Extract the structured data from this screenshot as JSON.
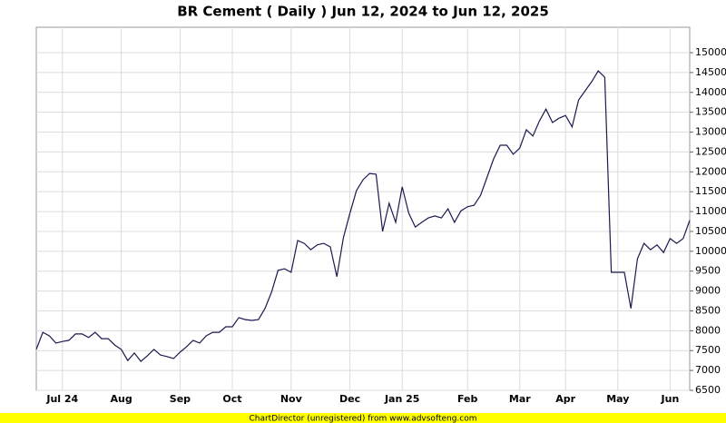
{
  "chart_data": {
    "type": "line",
    "title": "BR Cement ( Daily ) Jun 12, 2024 to Jun 12, 2025",
    "categories": [
      null,
      null,
      null,
      null,
      "Jul 24",
      null,
      null,
      null,
      null,
      null,
      null,
      null,
      null,
      "Aug",
      null,
      null,
      null,
      null,
      null,
      null,
      null,
      null,
      "Sep",
      null,
      null,
      null,
      null,
      null,
      null,
      null,
      "Oct",
      null,
      null,
      null,
      null,
      null,
      null,
      null,
      null,
      "Nov",
      null,
      null,
      null,
      null,
      null,
      null,
      null,
      null,
      "Dec",
      null,
      null,
      null,
      null,
      null,
      null,
      null,
      "Jan 25",
      null,
      null,
      null,
      null,
      null,
      null,
      null,
      null,
      null,
      "Feb",
      null,
      null,
      null,
      null,
      null,
      null,
      null,
      "Mar",
      null,
      null,
      null,
      null,
      null,
      null,
      "Apr",
      null,
      null,
      null,
      null,
      null,
      null,
      null,
      "May",
      null,
      null,
      null,
      null,
      null,
      null,
      null,
      "Jun",
      null,
      null,
      null
    ],
    "values": [
      7530,
      7960,
      7870,
      7690,
      7730,
      7760,
      7920,
      7920,
      7830,
      7960,
      7800,
      7800,
      7640,
      7530,
      7250,
      7440,
      7230,
      7370,
      7530,
      7390,
      7350,
      7300,
      7460,
      7600,
      7760,
      7690,
      7870,
      7960,
      7960,
      8100,
      8100,
      8330,
      8280,
      8260,
      8280,
      8560,
      8970,
      9520,
      9560,
      9470,
      10270,
      10200,
      10040,
      10160,
      10200,
      10110,
      9360,
      10340,
      10960,
      11530,
      11800,
      11960,
      11940,
      10500,
      11210,
      10730,
      11620,
      10960,
      10610,
      10730,
      10840,
      10890,
      10840,
      11070,
      10730,
      11020,
      11120,
      11160,
      11410,
      11870,
      12330,
      12670,
      12670,
      12440,
      12600,
      13060,
      12900,
      13280,
      13580,
      13240,
      13350,
      13420,
      13130,
      13810,
      14040,
      14270,
      14540,
      14380,
      9470,
      9470,
      9470,
      8560,
      9810,
      10200,
      10040,
      10160,
      9970,
      10320,
      10200,
      10320,
      10780
    ],
    "color": "#1a1a4e",
    "ylim": [
      6500,
      15640
    ],
    "yticks": [
      6500,
      7000,
      7500,
      8000,
      8500,
      9000,
      9500,
      10000,
      10500,
      11000,
      11500,
      12000,
      12500,
      13000,
      13500,
      14000,
      14500,
      15000
    ],
    "grid": true,
    "footer": "ChartDirector (unregistered) from www.advsofteng.com"
  }
}
